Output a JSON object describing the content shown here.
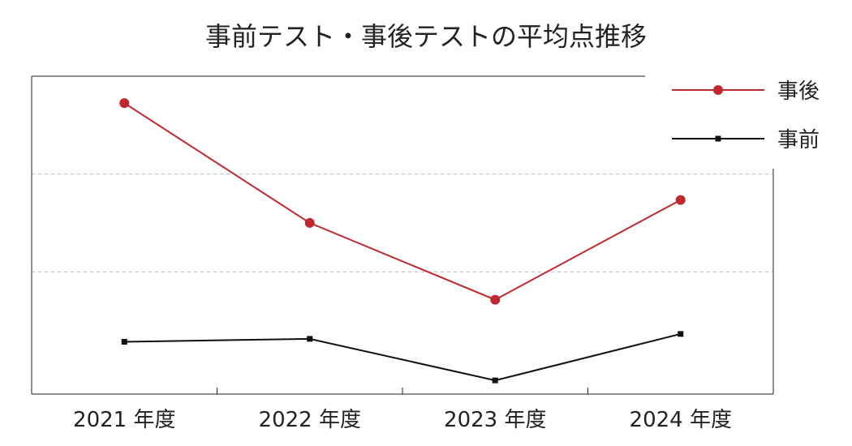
{
  "chart_data": {
    "type": "line",
    "title": "事前テスト・事後テストの平均点推移",
    "xlabel": "",
    "ylabel": "",
    "categories": [
      "2021 年度",
      "2022 年度",
      "2023 年度",
      "2024 年度"
    ],
    "series": [
      {
        "name": "事後",
        "values": [
          92,
          67.5,
          51.8,
          72.2
        ],
        "color": "#c0282f",
        "marker": "circle"
      },
      {
        "name": "事前",
        "values": [
          43.2,
          43.8,
          35.3,
          44.8
        ],
        "color": "#111111",
        "marker": "square"
      }
    ],
    "ylim": [
      32.5,
      97.5
    ],
    "gridlines": [
      77.5,
      57.5
    ],
    "grid": true,
    "y_tick_labels_shown": false,
    "legend_position": "top-right"
  }
}
